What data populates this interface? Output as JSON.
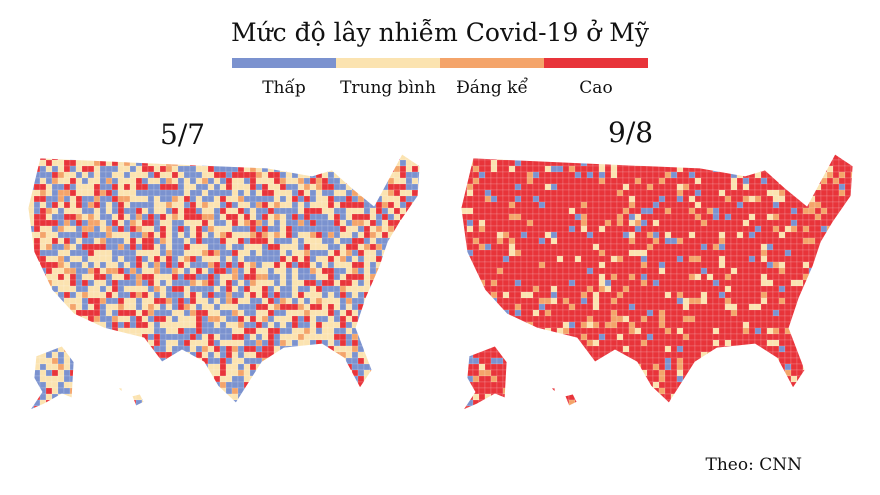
{
  "title": "Mức độ lây nhiễm Covid-19 ở Mỹ",
  "legend": [
    {
      "label": "Thấp",
      "color": "#7b92cf"
    },
    {
      "label": "Trung bình",
      "color": "#fbe3b0"
    },
    {
      "label": "Đáng kể",
      "color": "#f4a46a"
    },
    {
      "label": "Cao",
      "color": "#e8343a"
    }
  ],
  "maps": [
    {
      "date": "5/7",
      "level_mix": {
        "Thấp": 0.32,
        "Trung bình": 0.38,
        "Đáng kể": 0.08,
        "Cao": 0.22
      }
    },
    {
      "date": "9/8",
      "level_mix": {
        "Thấp": 0.06,
        "Trung bình": 0.07,
        "Đáng kể": 0.07,
        "Cao": 0.8
      }
    }
  ],
  "source": "Theo: CNN"
}
